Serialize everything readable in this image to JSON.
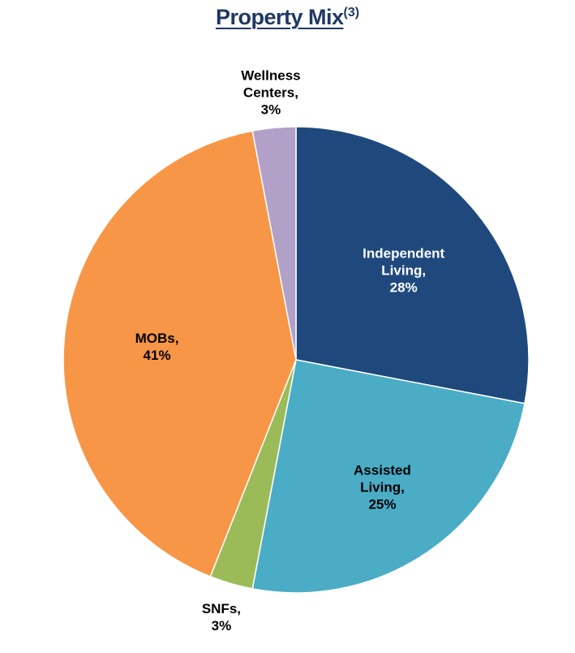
{
  "chart_data": {
    "type": "pie",
    "title": "Property Mix",
    "title_note": "(3)",
    "categories": [
      "Independent Living,",
      "Assisted Living,",
      "SNFs,",
      "MOBs,",
      "Wellness Centers,"
    ],
    "values": [
      28,
      25,
      3,
      41,
      3
    ],
    "value_labels": [
      "28%",
      "25%",
      "3%",
      "41%",
      "3%"
    ],
    "colors": [
      "#1f497d",
      "#4bacc6",
      "#9bbb59",
      "#f79646",
      "#b1a0c7"
    ]
  }
}
